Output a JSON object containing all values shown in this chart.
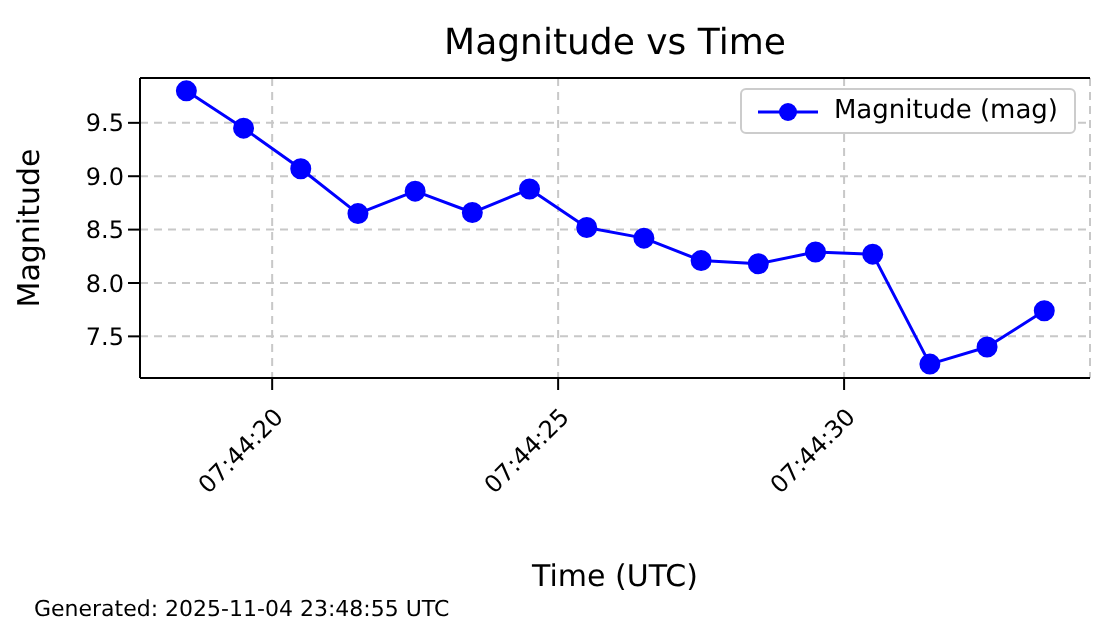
{
  "chart_data": {
    "type": "line",
    "title": "Magnitude vs Time",
    "xlabel": "Time (UTC)",
    "ylabel": "Magnitude",
    "x": [
      7.73847222,
      7.73875,
      7.73902778,
      7.73930556,
      7.73958333,
      7.73986111,
      7.74013889,
      7.74041667,
      7.74069444,
      7.74097222,
      7.74125,
      7.74152778,
      7.74180556,
      7.74208333,
      7.74236111,
      7.74263889
    ],
    "series": [
      {
        "name": "Magnitude (mag)",
        "color": "#0000ff",
        "values": [
          9.8,
          9.45,
          9.07,
          8.65,
          8.86,
          8.66,
          8.88,
          8.52,
          8.42,
          8.21,
          8.18,
          8.29,
          8.27,
          7.24,
          7.4,
          7.74
        ]
      }
    ],
    "xlim": [
      7.738247,
      7.742861
    ],
    "xticks": [
      {
        "value": 7.73888889,
        "label": "07:44:20"
      },
      {
        "value": 7.74027778,
        "label": "07:44:25"
      },
      {
        "value": 7.74166667,
        "label": "07:44:30"
      }
    ],
    "ylim": [
      7.11,
      9.92
    ],
    "yticks": [
      7.5,
      {
        "value": 8,
        "label": "8.0"
      },
      8.5,
      {
        "value": 9,
        "label": "9.0"
      },
      9.5
    ],
    "grid": true,
    "legend": "top right",
    "marker": "circle",
    "line_style": "solid",
    "annotations": [
      "Generated: 2025-11-04 23:48:55 UTC"
    ]
  }
}
